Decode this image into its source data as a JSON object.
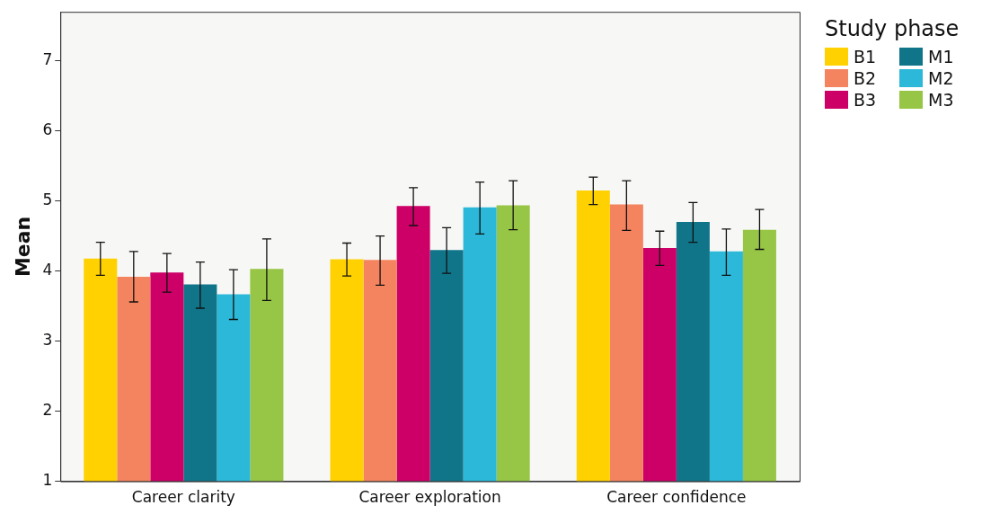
{
  "chart_data": {
    "type": "bar",
    "ylabel": "Mean",
    "legend_title": "Study phase",
    "legend": "right",
    "grid": false,
    "categories": [
      "Career clarity",
      "Career exploration",
      "Career confidence"
    ],
    "ylim": [
      1,
      7.7
    ],
    "yticks": [
      1,
      2,
      3,
      4,
      5,
      6,
      7
    ],
    "series": [
      {
        "name": "B1",
        "color": "#ffd100",
        "values": [
          4.18,
          4.17,
          5.15
        ],
        "errors": [
          [
            3.94,
            4.41
          ],
          [
            3.93,
            4.4
          ],
          [
            4.95,
            5.34
          ]
        ]
      },
      {
        "name": "B2",
        "color": "#f4845f",
        "values": [
          3.92,
          4.16,
          4.95
        ],
        "errors": [
          [
            3.56,
            4.28
          ],
          [
            3.8,
            4.5
          ],
          [
            4.58,
            5.29
          ]
        ]
      },
      {
        "name": "B3",
        "color": "#cc0066",
        "values": [
          3.98,
          4.93,
          4.33
        ],
        "errors": [
          [
            3.7,
            4.25
          ],
          [
            4.65,
            5.19
          ],
          [
            4.08,
            4.57
          ]
        ]
      },
      {
        "name": "M1",
        "color": "#11758a",
        "values": [
          3.81,
          4.3,
          4.7
        ],
        "errors": [
          [
            3.47,
            4.13
          ],
          [
            3.97,
            4.62
          ],
          [
            4.41,
            4.98
          ]
        ]
      },
      {
        "name": "M2",
        "color": "#2bb8d9",
        "values": [
          3.67,
          4.91,
          4.28
        ],
        "errors": [
          [
            3.31,
            4.02
          ],
          [
            4.53,
            5.27
          ],
          [
            3.94,
            4.6
          ]
        ]
      },
      {
        "name": "M3",
        "color": "#97c545",
        "values": [
          4.03,
          4.94,
          4.59
        ],
        "errors": [
          [
            3.58,
            4.46
          ],
          [
            4.59,
            5.29
          ],
          [
            4.31,
            4.88
          ]
        ]
      }
    ]
  }
}
